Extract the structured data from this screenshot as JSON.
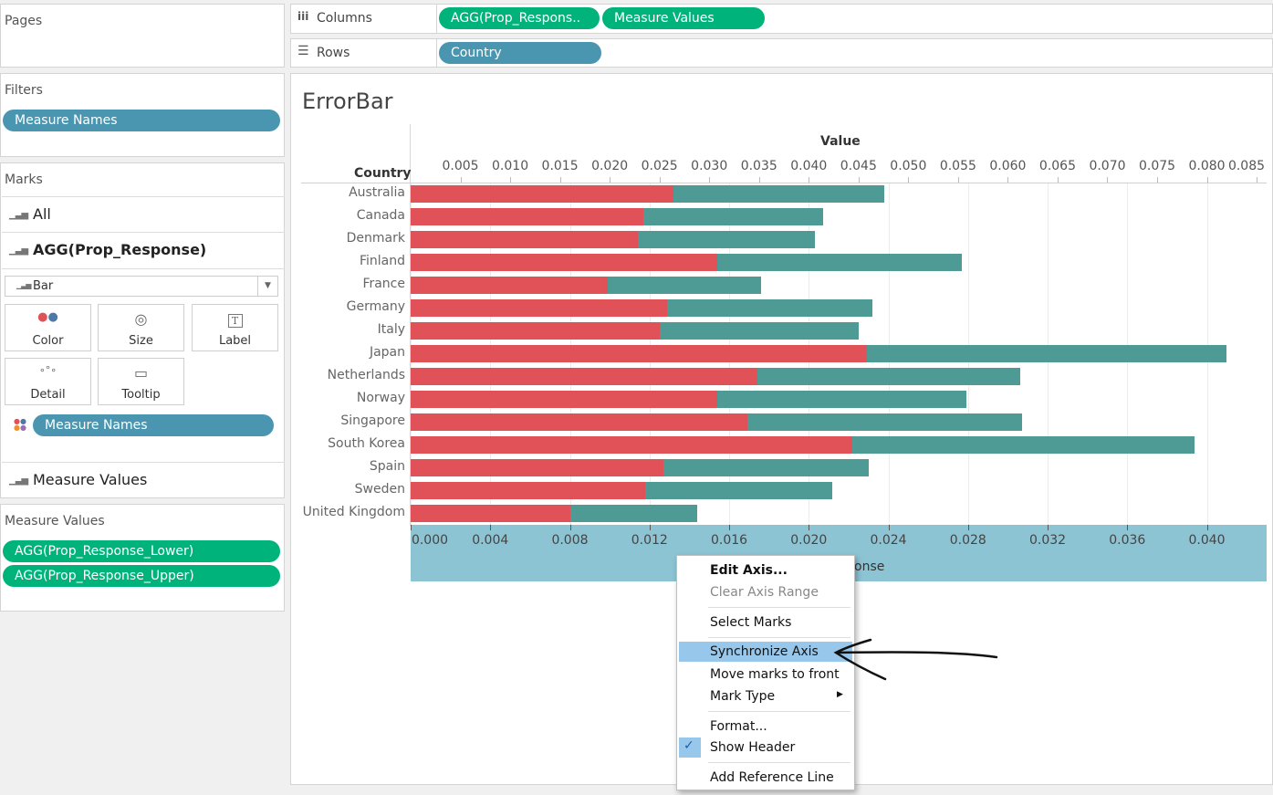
{
  "left_panel": {
    "pages_title": "Pages",
    "filters_title": "Filters",
    "filters": [
      "Measure Names"
    ],
    "marks_title": "Marks",
    "marks_all": "All",
    "marks_agg": "AGG(Prop_Response)",
    "mark_type": "Bar",
    "mark_buttons": {
      "color": "Color",
      "size": "Size",
      "label": "Label",
      "detail": "Detail",
      "tooltip": "Tooltip"
    },
    "color_field": "Measure Names",
    "marks_measure_values": "Measure Values",
    "measure_values_title": "Measure Values",
    "measure_values": [
      "AGG(Prop_Response_Lower)",
      "AGG(Prop_Response_Upper)"
    ]
  },
  "shelves": {
    "columns_label": "Columns",
    "columns": [
      "AGG(Prop_Respons..",
      "Measure Values"
    ],
    "rows_label": "Rows",
    "rows": [
      "Country"
    ]
  },
  "view": {
    "title": "ErrorBar",
    "row_header": "Country",
    "top_axis_title": "Value",
    "bottom_axis_title_visible": "onse",
    "colors": {
      "lower": "#e05258",
      "upper": "#4e9a94",
      "axis_bg": "#8cc4d4"
    }
  },
  "chart_data": {
    "type": "bar",
    "categories": [
      "Australia",
      "Canada",
      "Denmark",
      "Finland",
      "France",
      "Germany",
      "Italy",
      "Japan",
      "Netherlands",
      "Norway",
      "Singapore",
      "South Korea",
      "Spain",
      "Sweden",
      "United Kingdom"
    ],
    "series": [
      {
        "name": "AGG(Prop_Response_Lower)",
        "values": [
          0.0132,
          0.0117,
          0.0114,
          0.0154,
          0.0099,
          0.0129,
          0.0125,
          0.0229,
          0.0174,
          0.0154,
          0.0169,
          0.0222,
          0.0127,
          0.0118,
          0.008
        ]
      },
      {
        "name": "AGG(Prop_Response_Upper)",
        "values": [
          0.0238,
          0.0207,
          0.0203,
          0.0277,
          0.0176,
          0.0232,
          0.0225,
          0.041,
          0.0306,
          0.0279,
          0.0307,
          0.0394,
          0.023,
          0.0212,
          0.0144
        ]
      }
    ],
    "top_axis_ticks": [
      "0.005",
      "0.010",
      "0.015",
      "0.020",
      "0.025",
      "0.030",
      "0.035",
      "0.040",
      "0.045",
      "0.050",
      "0.055",
      "0.060",
      "0.065",
      "0.070",
      "0.075",
      "0.080",
      "0.085"
    ],
    "bottom_axis_ticks": [
      "0.000",
      "0.004",
      "0.008",
      "0.012",
      "0.016",
      "0.020",
      "0.024",
      "0.028",
      "0.032",
      "0.036",
      "0.040"
    ],
    "bottom_axis_range": [
      0,
      0.043
    ],
    "top_axis_range": [
      0,
      0.086
    ],
    "grid": true
  },
  "context_menu": {
    "items": [
      {
        "label": "Edit Axis...",
        "state": "bold"
      },
      {
        "label": "Clear Axis Range",
        "state": "disabled"
      },
      {
        "label": "Select Marks",
        "state": "normal"
      },
      {
        "label": "Synchronize Axis",
        "state": "highlighted"
      },
      {
        "label": "Move marks to front",
        "state": "normal"
      },
      {
        "label": "Mark Type",
        "state": "submenu"
      },
      {
        "label": "Format...",
        "state": "normal"
      },
      {
        "label": "Show Header",
        "state": "checked"
      },
      {
        "label": "Add Reference Line",
        "state": "normal"
      }
    ]
  }
}
